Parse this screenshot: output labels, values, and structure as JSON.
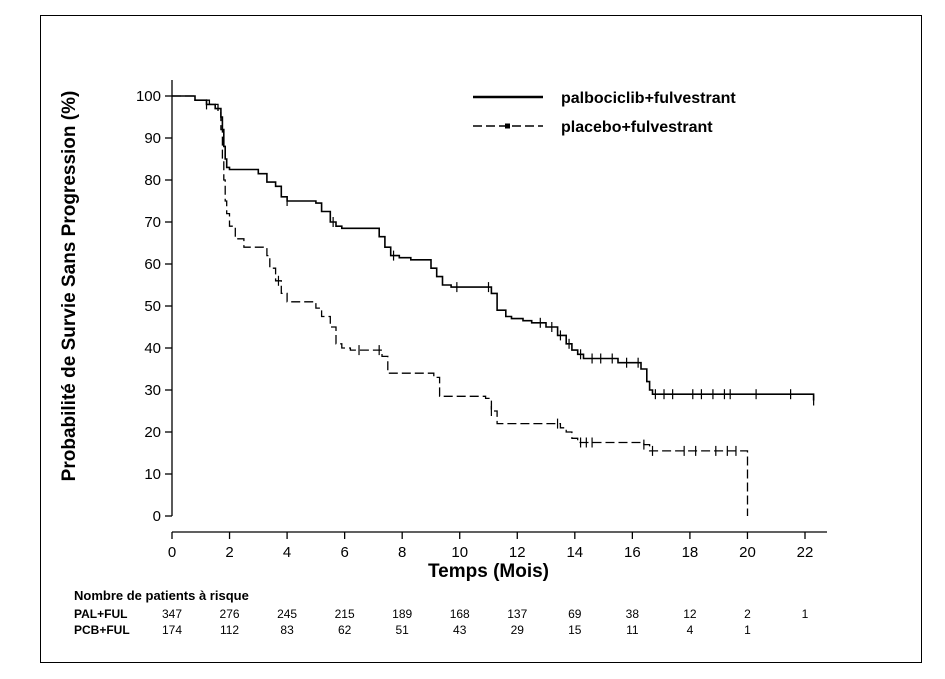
{
  "chart_data": {
    "type": "line",
    "subtype": "kaplan-meier",
    "title": "",
    "xlabel": "Temps (Mois)",
    "ylabel": "Probabilité de Survie Sans Progression (%)",
    "xlim": [
      0,
      22
    ],
    "ylim": [
      0,
      100
    ],
    "xticks": [
      0,
      2,
      4,
      6,
      8,
      10,
      12,
      14,
      16,
      18,
      20,
      22
    ],
    "yticks": [
      0,
      10,
      20,
      30,
      40,
      50,
      60,
      70,
      80,
      90,
      100
    ],
    "grid": false,
    "legend_position": "top-right",
    "series": [
      {
        "name": "palbociclib+fulvestrant",
        "line_style": "solid",
        "color": "#000000",
        "x": [
          0,
          0.8,
          1.2,
          1.5,
          1.7,
          1.75,
          1.8,
          1.85,
          1.9,
          2.0,
          3.0,
          3.3,
          3.6,
          3.8,
          4.0,
          5.0,
          5.2,
          5.5,
          5.7,
          5.9,
          7.2,
          7.4,
          7.6,
          7.9,
          8.3,
          9.0,
          9.2,
          9.4,
          9.7,
          11.1,
          11.3,
          11.6,
          11.8,
          12.2,
          12.5,
          13.0,
          13.4,
          13.7,
          13.9,
          14.1,
          14.3,
          15.5,
          16.3,
          16.5,
          16.6,
          16.7,
          22.3
        ],
        "y": [
          100,
          99,
          98,
          97,
          95,
          92,
          88,
          85,
          83,
          82.5,
          81.5,
          79.5,
          78.5,
          76,
          75,
          74.5,
          72.5,
          70,
          69,
          68.5,
          66.5,
          64,
          62,
          61.5,
          61,
          59,
          57,
          55,
          54.5,
          53,
          49,
          47.5,
          47,
          46.5,
          46,
          45,
          43,
          41,
          39.5,
          38.5,
          37.5,
          36.5,
          35,
          32,
          30,
          29,
          27.5
        ],
        "censor_x": [
          1.2,
          4.0,
          5.6,
          7.7,
          9.9,
          11.0,
          12.8,
          13.2,
          13.5,
          13.8,
          14.2,
          14.6,
          14.9,
          15.3,
          15.8,
          16.2,
          16.8,
          17.1,
          17.4,
          18.1,
          18.4,
          18.8,
          19.2,
          19.4,
          20.3,
          21.5,
          22.3
        ]
      },
      {
        "name": "placebo+fulvestrant",
        "line_style": "dashed",
        "color": "#000000",
        "x": [
          0,
          0.8,
          1.3,
          1.6,
          1.7,
          1.75,
          1.8,
          1.85,
          1.9,
          2.0,
          2.2,
          2.5,
          3.3,
          3.4,
          3.6,
          3.8,
          4.0,
          5.0,
          5.2,
          5.5,
          5.7,
          5.9,
          6.2,
          7.3,
          7.5,
          9.1,
          9.3,
          10.9,
          11.1,
          11.3,
          13.5,
          13.7,
          13.9,
          14.1,
          16.4,
          16.6,
          19.9,
          20.0
        ],
        "y": [
          100,
          99,
          98,
          96,
          92,
          85,
          80,
          75,
          72,
          69,
          66,
          64,
          62,
          59,
          56,
          53,
          51,
          49.5,
          47.5,
          45,
          41,
          40,
          39.5,
          38,
          34,
          33,
          28.5,
          28,
          25,
          22,
          21,
          20,
          18.5,
          17.5,
          17,
          15.5,
          15.5,
          0
        ],
        "censor_x": [
          3.7,
          6.5,
          7.2,
          11.1,
          13.4,
          14.2,
          14.4,
          14.6,
          16.4,
          16.7,
          17.8,
          18.2,
          18.9,
          19.3,
          19.6
        ]
      }
    ],
    "risk_table": {
      "title": "Nombre de patients à risque",
      "times": [
        0,
        2,
        4,
        6,
        8,
        10,
        12,
        14,
        16,
        18,
        20,
        22
      ],
      "rows": [
        {
          "label": "PAL+FUL",
          "values": [
            "347",
            "276",
            "245",
            "215",
            "189",
            "168",
            "137",
            "69",
            "38",
            "12",
            "2",
            "1"
          ]
        },
        {
          "label": "PCB+FUL",
          "values": [
            "174",
            "112",
            "83",
            "62",
            "51",
            "43",
            "29",
            "15",
            "11",
            "4",
            "1",
            ""
          ]
        }
      ]
    }
  }
}
